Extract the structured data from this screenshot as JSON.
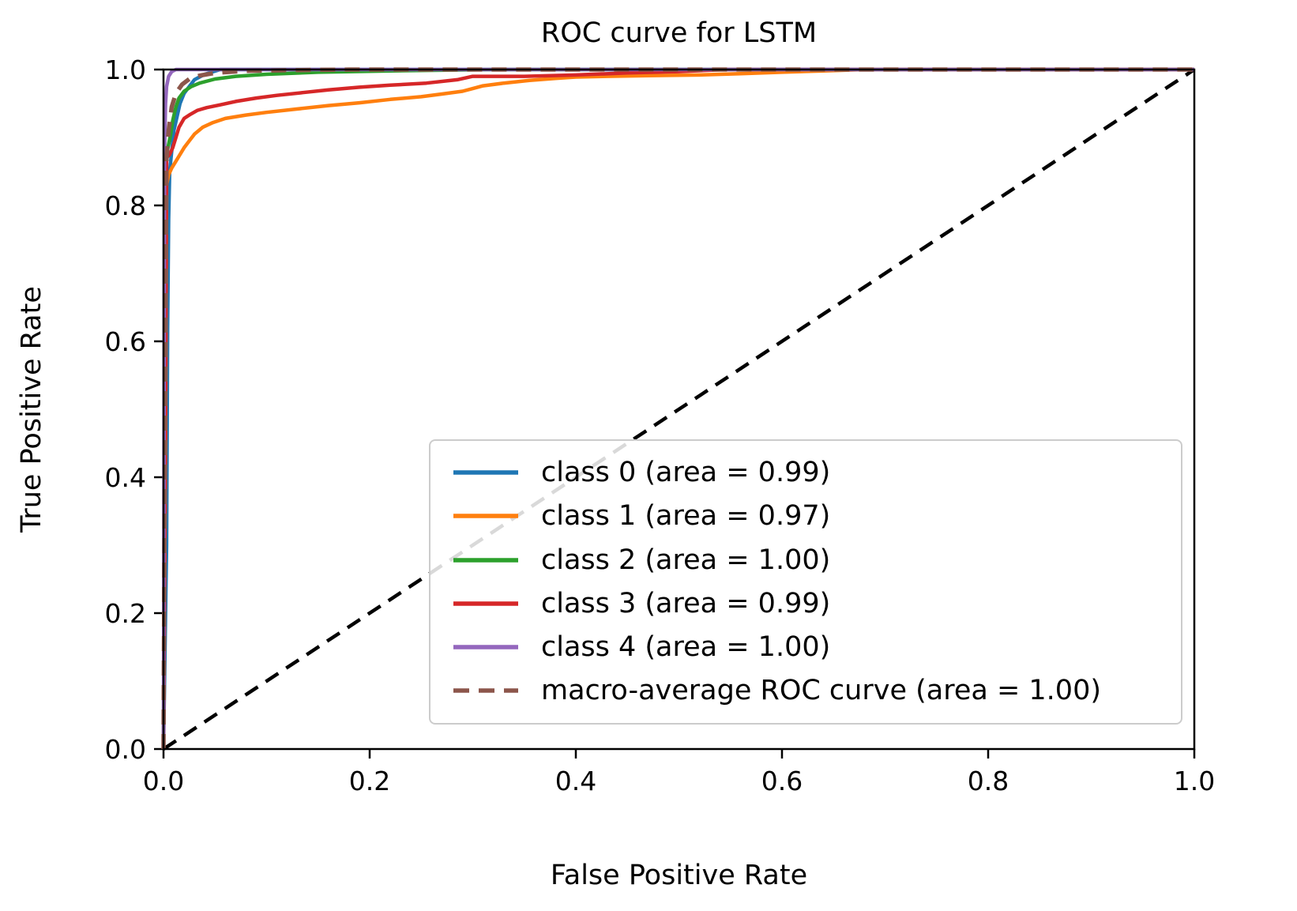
{
  "chart_data": {
    "type": "line",
    "title": "ROC curve for LSTM",
    "xlabel": "False Positive Rate",
    "ylabel": "True Positive Rate",
    "xlim": [
      0,
      1
    ],
    "ylim": [
      0,
      1
    ],
    "grid": false,
    "legend_position": "lower right",
    "xticks": [
      {
        "value": 0.0,
        "label": "0.0"
      },
      {
        "value": 0.2,
        "label": "0.2"
      },
      {
        "value": 0.4,
        "label": "0.4"
      },
      {
        "value": 0.6,
        "label": "0.6"
      },
      {
        "value": 0.8,
        "label": "0.8"
      },
      {
        "value": 1.0,
        "label": "1.0"
      }
    ],
    "yticks": [
      {
        "value": 0.0,
        "label": "0.0"
      },
      {
        "value": 0.2,
        "label": "0.2"
      },
      {
        "value": 0.4,
        "label": "0.4"
      },
      {
        "value": 0.6,
        "label": "0.6"
      },
      {
        "value": 0.8,
        "label": "0.8"
      },
      {
        "value": 1.0,
        "label": "1.0"
      }
    ],
    "series": [
      {
        "key": "chance-diagonal",
        "name": "chance (diagonal)",
        "legend": false,
        "color": "#000000",
        "dash": "dashed",
        "width": 4.5,
        "points": [
          [
            0,
            0
          ],
          [
            1,
            1
          ]
        ]
      },
      {
        "key": "class-0",
        "name": "class 0 (area = 0.99)",
        "area": 0.99,
        "color": "#1f77b4",
        "dash": "solid",
        "width": 4.5,
        "points": [
          [
            0,
            0
          ],
          [
            0.003,
            0.3
          ],
          [
            0.004,
            0.62
          ],
          [
            0.005,
            0.78
          ],
          [
            0.006,
            0.85
          ],
          [
            0.008,
            0.88
          ],
          [
            0.01,
            0.91
          ],
          [
            0.013,
            0.93
          ],
          [
            0.016,
            0.95
          ],
          [
            0.02,
            0.965
          ],
          [
            0.025,
            0.975
          ],
          [
            0.03,
            0.985
          ],
          [
            0.04,
            0.993
          ],
          [
            0.055,
            1.0
          ],
          [
            1,
            1
          ]
        ]
      },
      {
        "key": "class-1",
        "name": "class 1 (area = 0.97)",
        "area": 0.97,
        "color": "#ff7f0e",
        "dash": "solid",
        "width": 4.5,
        "points": [
          [
            0,
            0
          ],
          [
            0.002,
            0.45
          ],
          [
            0.003,
            0.83
          ],
          [
            0.005,
            0.845
          ],
          [
            0.008,
            0.855
          ],
          [
            0.012,
            0.865
          ],
          [
            0.016,
            0.875
          ],
          [
            0.02,
            0.885
          ],
          [
            0.025,
            0.895
          ],
          [
            0.03,
            0.905
          ],
          [
            0.038,
            0.915
          ],
          [
            0.048,
            0.922
          ],
          [
            0.06,
            0.928
          ],
          [
            0.08,
            0.933
          ],
          [
            0.1,
            0.937
          ],
          [
            0.13,
            0.942
          ],
          [
            0.16,
            0.947
          ],
          [
            0.19,
            0.951
          ],
          [
            0.22,
            0.956
          ],
          [
            0.25,
            0.96
          ],
          [
            0.27,
            0.964
          ],
          [
            0.29,
            0.968
          ],
          [
            0.3,
            0.972
          ],
          [
            0.31,
            0.976
          ],
          [
            0.33,
            0.98
          ],
          [
            0.355,
            0.984
          ],
          [
            0.38,
            0.987
          ],
          [
            0.4,
            0.989
          ],
          [
            0.43,
            0.99
          ],
          [
            0.47,
            0.991
          ],
          [
            0.52,
            0.992
          ],
          [
            0.56,
            0.994
          ],
          [
            0.6,
            0.996
          ],
          [
            0.64,
            0.998
          ],
          [
            0.68,
            1.0
          ],
          [
            1,
            1
          ]
        ]
      },
      {
        "key": "class-2",
        "name": "class 2 (area = 1.00)",
        "area": 1.0,
        "color": "#2ca02c",
        "dash": "solid",
        "width": 4.5,
        "points": [
          [
            0,
            0
          ],
          [
            0.001,
            0.55
          ],
          [
            0.002,
            0.86
          ],
          [
            0.003,
            0.875
          ],
          [
            0.005,
            0.89
          ],
          [
            0.007,
            0.905
          ],
          [
            0.009,
            0.925
          ],
          [
            0.012,
            0.945
          ],
          [
            0.015,
            0.958
          ],
          [
            0.02,
            0.968
          ],
          [
            0.027,
            0.975
          ],
          [
            0.035,
            0.98
          ],
          [
            0.05,
            0.986
          ],
          [
            0.07,
            0.99
          ],
          [
            0.1,
            0.993
          ],
          [
            0.15,
            0.996
          ],
          [
            0.22,
            0.998
          ],
          [
            0.32,
            1.0
          ],
          [
            1,
            1
          ]
        ]
      },
      {
        "key": "class-3",
        "name": "class 3 (area = 0.99)",
        "area": 0.99,
        "color": "#d62728",
        "dash": "solid",
        "width": 4.5,
        "points": [
          [
            0,
            0
          ],
          [
            0.002,
            0.5
          ],
          [
            0.003,
            0.87
          ],
          [
            0.006,
            0.875
          ],
          [
            0.009,
            0.885
          ],
          [
            0.012,
            0.9
          ],
          [
            0.015,
            0.915
          ],
          [
            0.02,
            0.928
          ],
          [
            0.026,
            0.934
          ],
          [
            0.033,
            0.94
          ],
          [
            0.042,
            0.944
          ],
          [
            0.055,
            0.948
          ],
          [
            0.07,
            0.953
          ],
          [
            0.09,
            0.958
          ],
          [
            0.11,
            0.962
          ],
          [
            0.135,
            0.966
          ],
          [
            0.16,
            0.97
          ],
          [
            0.19,
            0.974
          ],
          [
            0.22,
            0.977
          ],
          [
            0.255,
            0.98
          ],
          [
            0.285,
            0.985
          ],
          [
            0.3,
            0.99
          ],
          [
            0.35,
            0.99
          ],
          [
            0.4,
            0.992
          ],
          [
            0.45,
            0.995
          ],
          [
            0.5,
            0.997
          ],
          [
            0.545,
            1.0
          ],
          [
            1,
            1
          ]
        ]
      },
      {
        "key": "class-4",
        "name": "class 4 (area = 1.00)",
        "area": 1.0,
        "color": "#9467bd",
        "dash": "solid",
        "width": 4.5,
        "points": [
          [
            0,
            0
          ],
          [
            0.001,
            0.88
          ],
          [
            0.002,
            0.95
          ],
          [
            0.003,
            0.975
          ],
          [
            0.005,
            0.99
          ],
          [
            0.008,
            0.997
          ],
          [
            0.012,
            1.0
          ],
          [
            1,
            1
          ]
        ]
      },
      {
        "key": "macro-average",
        "name": "macro-average ROC curve (area = 1.00)",
        "area": 1.0,
        "color": "#8c564b",
        "dash": "dashed",
        "width": 5.5,
        "points": [
          [
            0,
            0
          ],
          [
            0.002,
            0.65
          ],
          [
            0.003,
            0.87
          ],
          [
            0.005,
            0.91
          ],
          [
            0.008,
            0.945
          ],
          [
            0.012,
            0.965
          ],
          [
            0.018,
            0.978
          ],
          [
            0.025,
            0.986
          ],
          [
            0.035,
            0.991
          ],
          [
            0.05,
            0.995
          ],
          [
            0.08,
            0.998
          ],
          [
            0.12,
            0.999
          ],
          [
            0.18,
            1.0
          ],
          [
            1,
            1
          ]
        ]
      }
    ]
  }
}
